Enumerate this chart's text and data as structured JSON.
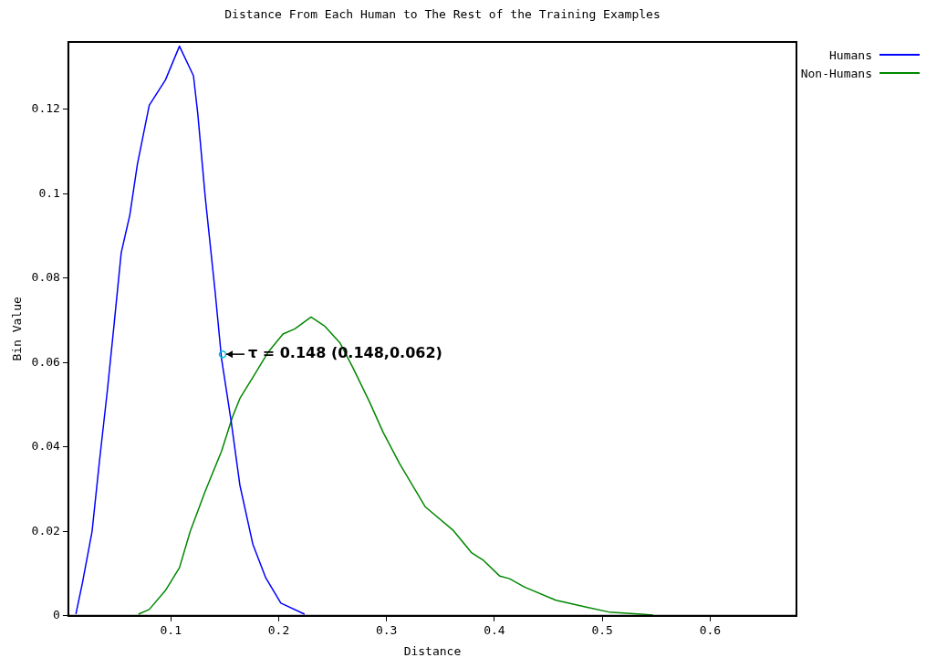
{
  "chart_data": {
    "type": "line",
    "title": "Distance From Each Human to The Rest of the Training Examples",
    "xlabel": "Distance",
    "ylabel": "Bin Value",
    "xlim": [
      0.005,
      0.68
    ],
    "xticks": [
      0.1,
      0.2,
      0.3,
      0.4,
      0.5,
      0.6
    ],
    "ylim": [
      0,
      0.136
    ],
    "yticks": [
      0,
      0.02,
      0.04,
      0.06,
      0.08,
      0.1,
      0.12
    ],
    "grid": false,
    "legend": "top right",
    "marker": "none",
    "series": [
      {
        "name": "Humans",
        "color": "#0000ff",
        "x": [
          0.012,
          0.018,
          0.027,
          0.034,
          0.041,
          0.047,
          0.054,
          0.062,
          0.069,
          0.08,
          0.095,
          0.108,
          0.121,
          0.125,
          0.132,
          0.141,
          0.147,
          0.156,
          0.164,
          0.176,
          0.188,
          0.202,
          0.224
        ],
        "values": [
          0.0004,
          0.0077,
          0.02,
          0.037,
          0.053,
          0.068,
          0.086,
          0.095,
          0.107,
          0.121,
          0.127,
          0.135,
          0.128,
          0.119,
          0.099,
          0.077,
          0.061,
          0.046,
          0.031,
          0.017,
          0.009,
          0.003,
          0.0004
        ]
      },
      {
        "name": "Non-Humans",
        "color": "#008800",
        "x": [
          0.07,
          0.08,
          0.095,
          0.108,
          0.118,
          0.132,
          0.147,
          0.157,
          0.164,
          0.176,
          0.19,
          0.204,
          0.215,
          0.23,
          0.243,
          0.257,
          0.269,
          0.284,
          0.297,
          0.312,
          0.336,
          0.362,
          0.379,
          0.39,
          0.405,
          0.414,
          0.428,
          0.457,
          0.486,
          0.506,
          0.536,
          0.547
        ],
        "values": [
          0.0004,
          0.0015,
          0.006,
          0.0114,
          0.02,
          0.0296,
          0.039,
          0.047,
          0.0515,
          0.0565,
          0.0624,
          0.0668,
          0.068,
          0.0708,
          0.0686,
          0.0646,
          0.0587,
          0.0508,
          0.0434,
          0.0361,
          0.0258,
          0.0202,
          0.0149,
          0.0131,
          0.0094,
          0.0088,
          0.0068,
          0.0037,
          0.002,
          0.0009,
          0.0004,
          0.0002
        ]
      }
    ],
    "annotations": [
      {
        "text": "τ = 0.148 (0.148,0.062)",
        "x": 0.148,
        "y": 0.062
      }
    ]
  }
}
